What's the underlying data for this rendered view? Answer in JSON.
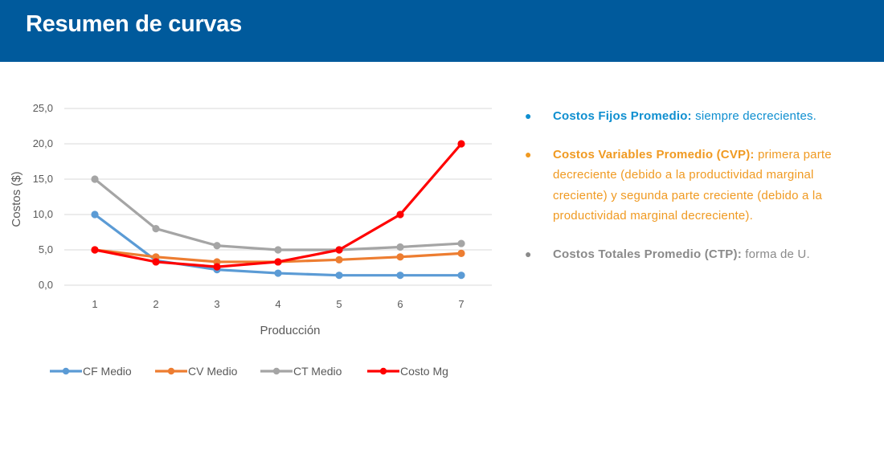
{
  "header": {
    "title": "Resumen de curvas"
  },
  "notes": [
    {
      "bold": "Costos Fijos Promedio:",
      "text": " siempre decrecientes.",
      "color": "#0f8fd0"
    },
    {
      "bold": "Costos Variables Promedio (CVP):",
      "text": " primera parte decreciente (debido a la productividad marginal creciente) y segunda parte creciente (debido a la productividad marginal decreciente).",
      "color": "#f09a22"
    },
    {
      "bold": "Costos Totales Promedio (CTP):",
      "text": " forma de U.",
      "color": "#8a8a8a"
    }
  ],
  "chart_data": {
    "type": "line",
    "x": [
      1,
      2,
      3,
      4,
      5,
      6,
      7
    ],
    "series": [
      {
        "name": "CF Medio",
        "color": "#5b9bd5",
        "values": [
          10.0,
          3.5,
          2.2,
          1.7,
          1.4,
          1.4,
          1.4
        ]
      },
      {
        "name": "CV Medio",
        "color": "#ed7d31",
        "values": [
          5.0,
          4.0,
          3.3,
          3.3,
          3.6,
          4.0,
          4.5
        ]
      },
      {
        "name": "CT Medio",
        "color": "#a5a5a5",
        "values": [
          15.0,
          8.0,
          5.6,
          5.0,
          5.0,
          5.4,
          5.9
        ]
      },
      {
        "name": "Costo Mg",
        "color": "#ff0000",
        "values": [
          5.0,
          3.3,
          2.6,
          3.3,
          5.0,
          10.0,
          20.0
        ]
      }
    ],
    "xlabel": "Producción",
    "ylabel": "Costos ($)",
    "ylim": [
      0,
      25
    ],
    "yticks": [
      "0,0",
      "5,0",
      "10,0",
      "15,0",
      "20,0",
      "25,0"
    ],
    "xticks": [
      "1",
      "2",
      "3",
      "4",
      "5",
      "6",
      "7"
    ],
    "grid": true,
    "legend_position": "bottom"
  }
}
